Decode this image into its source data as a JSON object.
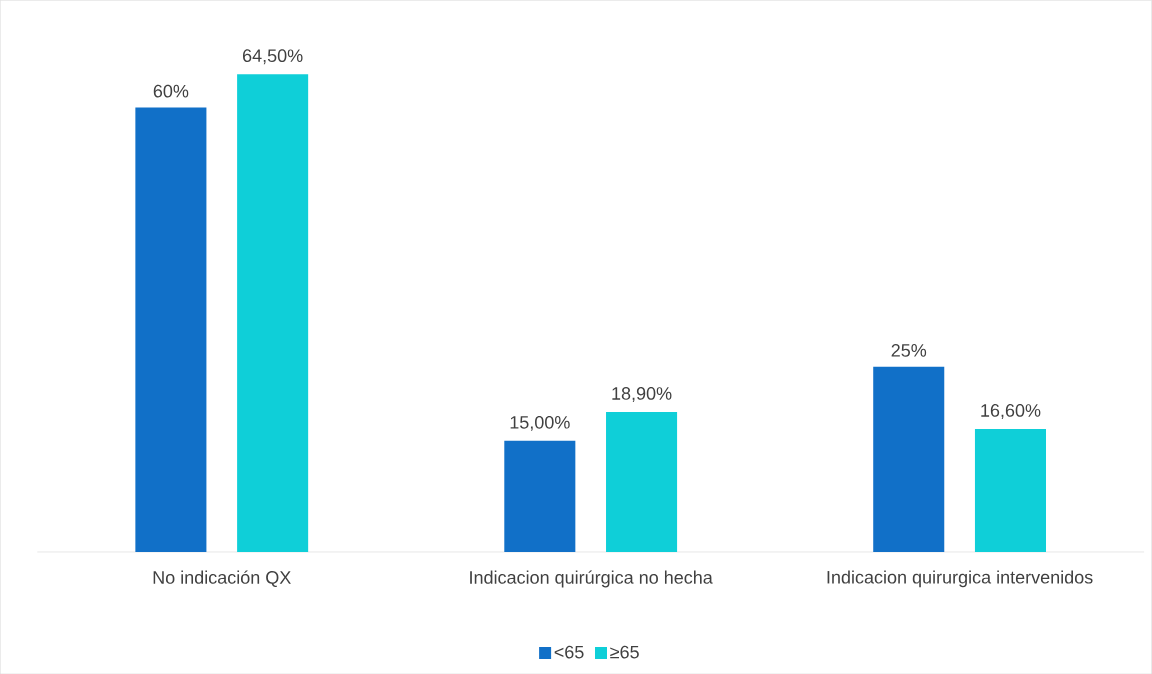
{
  "chart_data": {
    "type": "bar",
    "categories": [
      "No indicación QX",
      "Indicacion quirúrgica no hecha",
      "Indicacion quirurgica intervenidos"
    ],
    "series": [
      {
        "name": "<65",
        "color": "#1170c8",
        "values": [
          60,
          15,
          25
        ],
        "value_labels": [
          "60%",
          "15,00%",
          "25%"
        ]
      },
      {
        "name": "≥65",
        "color": "#0fcfd8",
        "values": [
          64.5,
          18.9,
          16.6
        ],
        "value_labels": [
          "64,50%",
          "18,90%",
          "16,60%"
        ]
      }
    ],
    "legend": "bottom"
  }
}
